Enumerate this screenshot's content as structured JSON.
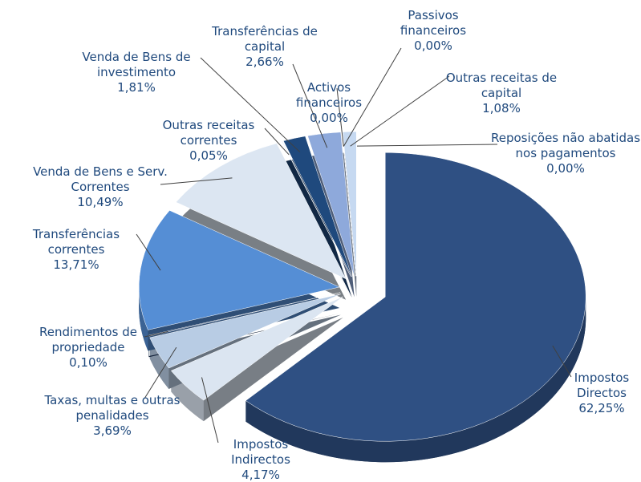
{
  "chart_data": {
    "type": "pie",
    "categories": [
      "Impostos Directos",
      "Impostos Indirectos",
      "Taxas, multas e outras penalidades",
      "Rendimentos de propriedade",
      "Transferências correntes",
      "Venda de Bens e Serv. Correntes",
      "Outras receitas correntes",
      "Venda de Bens de investimento",
      "Transferências de capital",
      "Activos financeiros",
      "Passivos financeiros",
      "Outras receitas de capital",
      "Reposições não abatidas nos pagamentos"
    ],
    "values": [
      62.25,
      4.17,
      3.69,
      0.1,
      13.71,
      10.49,
      0.05,
      1.81,
      2.66,
      0.0,
      0.0,
      1.08,
      0.0
    ],
    "value_labels": [
      "62,25%",
      "4,17%",
      "3,69%",
      "0,10%",
      "13,71%",
      "10,49%",
      "0,05%",
      "1,81%",
      "2,66%",
      "0,00%",
      "0,00%",
      "1,08%",
      "0,00%"
    ],
    "colors": [
      "#2f5083",
      "#dbe5f1",
      "#b8cce4",
      "#1f3b66",
      "#558ed5",
      "#dce6f2",
      "#c6d9f1",
      "#1f497d",
      "#8ea9db",
      "#6f8fc4",
      "#a6bfe2",
      "#c6d9f1",
      "#b8cce4"
    ]
  }
}
